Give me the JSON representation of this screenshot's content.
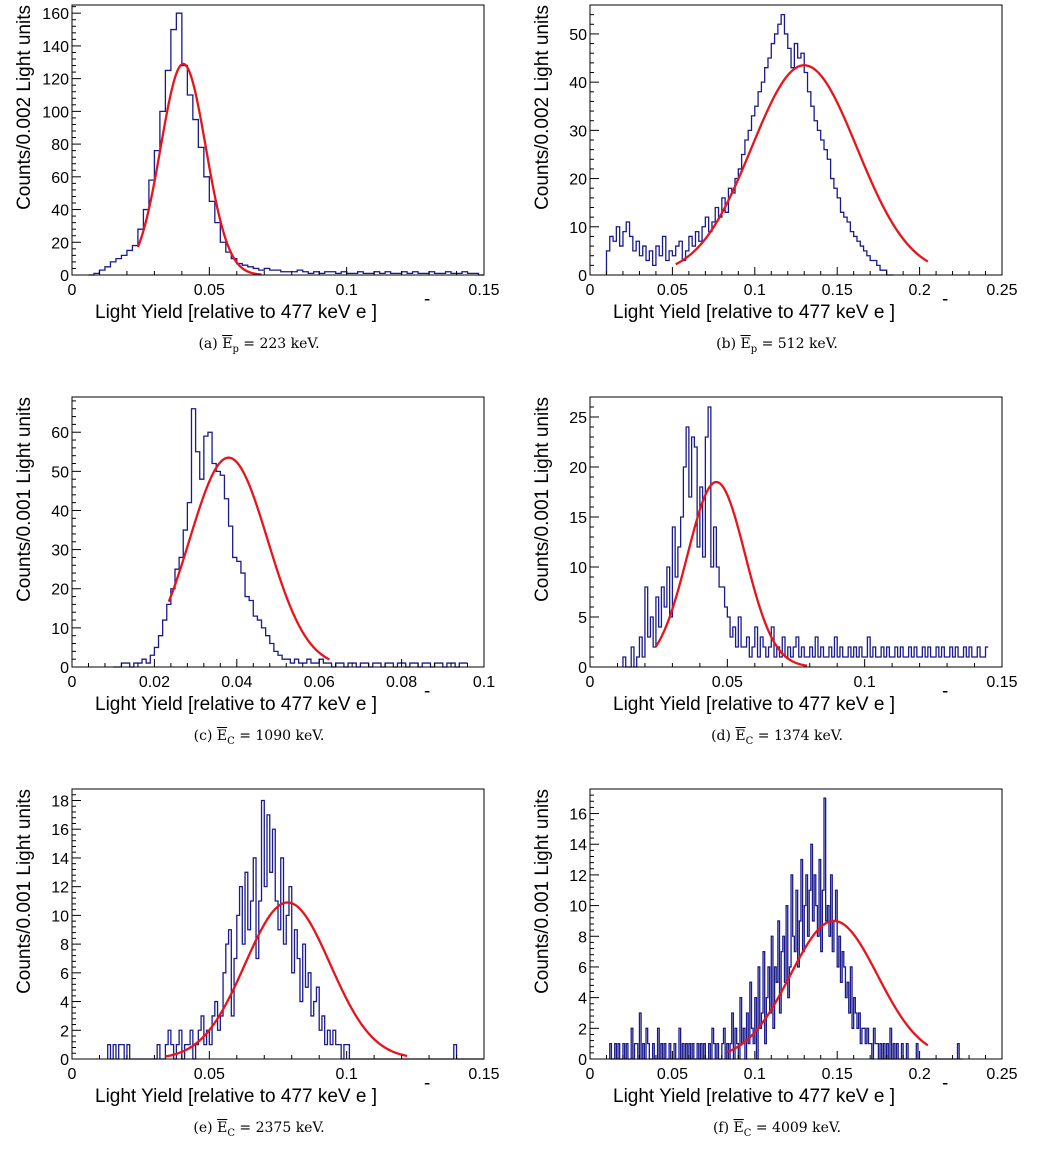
{
  "chart_data": [
    {
      "type": "histogram",
      "id": "a",
      "caption": {
        "letter": "(a)",
        "sym": "E",
        "sub": "p",
        "rest": " = 223 keV."
      },
      "ylabel": "Counts/0.002 Light units",
      "xlabel": "Light Yield [relative to 477 keV e  ]",
      "xlim": [
        0,
        0.15
      ],
      "ylim": [
        0,
        165
      ],
      "xticks": [
        0,
        0.05,
        0.1,
        0.15
      ],
      "xtick_labels": [
        "0",
        "0.05",
        "0.1",
        "0.15"
      ],
      "yticks": [
        0,
        20,
        40,
        60,
        80,
        100,
        120,
        140,
        160
      ],
      "ytick_labels": [
        "0",
        "20",
        "40",
        "60",
        "80",
        "100",
        "120",
        "140",
        "160"
      ],
      "bin_width": 0.002,
      "bin_start": 0.006,
      "counts": [
        0,
        1,
        3,
        5,
        8,
        10,
        12,
        15,
        18,
        28,
        40,
        58,
        76,
        100,
        125,
        150,
        160,
        128,
        110,
        95,
        78,
        60,
        45,
        32,
        20,
        14,
        10,
        7,
        6,
        5,
        4,
        3,
        4,
        3,
        3,
        2,
        2,
        2,
        3,
        2,
        1,
        2,
        1,
        2,
        2,
        1,
        2,
        1,
        1,
        2,
        1,
        1,
        2,
        1,
        2,
        1,
        1,
        2,
        1,
        2,
        1,
        1,
        2,
        1,
        1,
        2,
        1,
        1,
        2,
        1,
        1,
        0
      ],
      "fit": {
        "amplitude": 129,
        "mean": 0.0405,
        "sigma": 0.0082,
        "range": [
          0.024,
          0.069
        ]
      }
    },
    {
      "type": "histogram",
      "id": "b",
      "caption": {
        "letter": "(b)",
        "sym": "E",
        "sub": "p",
        "rest": " = 512 keV."
      },
      "ylabel": "Counts/0.002 Light units",
      "xlabel": "Light Yield [relative to 477 keV e  ]",
      "xlim": [
        0,
        0.25
      ],
      "ylim": [
        0,
        56
      ],
      "xticks": [
        0,
        0.05,
        0.1,
        0.15,
        0.2,
        0.25
      ],
      "xtick_labels": [
        "0",
        "0.05",
        "0.1",
        "0.15",
        "0.2",
        "0.25"
      ],
      "yticks": [
        0,
        10,
        20,
        30,
        40,
        50
      ],
      "ytick_labels": [
        "0",
        "10",
        "20",
        "30",
        "40",
        "50"
      ],
      "bin_width": 0.002,
      "bin_start": 0.01,
      "counts": [
        5,
        8,
        7,
        10,
        6,
        9,
        11,
        8,
        5,
        7,
        4,
        6,
        3,
        5,
        2,
        6,
        4,
        8,
        3,
        5,
        4,
        6,
        7,
        3,
        5,
        8,
        6,
        9,
        7,
        10,
        12,
        9,
        11,
        14,
        12,
        16,
        13,
        18,
        17,
        20,
        22,
        25,
        28,
        30,
        33,
        35,
        38,
        40,
        43,
        45,
        48,
        50,
        52,
        54,
        50,
        47,
        43,
        48,
        45,
        46,
        42,
        38,
        35,
        32,
        30,
        28,
        26,
        24,
        20,
        18,
        16,
        13,
        12,
        11,
        9,
        8,
        7,
        6,
        5,
        4,
        3,
        3,
        2,
        1,
        1,
        0,
        0
      ],
      "fit": {
        "amplitude": 43.5,
        "mean": 0.13,
        "sigma": 0.032,
        "range": [
          0.052,
          0.205
        ]
      }
    },
    {
      "type": "histogram",
      "id": "c",
      "caption": {
        "letter": "(c)",
        "sym": "E",
        "sub": "C",
        "rest": " = 1090 keV."
      },
      "ylabel": "Counts/0.001 Light units",
      "xlabel": "Light Yield [relative to 477 keV e  ]",
      "xlim": [
        0,
        0.1
      ],
      "ylim": [
        0,
        69
      ],
      "xticks": [
        0,
        0.02,
        0.04,
        0.06,
        0.08,
        0.1
      ],
      "xtick_labels": [
        "0",
        "0.02",
        "0.04",
        "0.06",
        "0.08",
        "0.1"
      ],
      "yticks": [
        0,
        10,
        20,
        30,
        40,
        50,
        60
      ],
      "ytick_labels": [
        "0",
        "10",
        "20",
        "30",
        "40",
        "50",
        "60"
      ],
      "bin_width": 0.001,
      "bin_start": 0.01,
      "counts": [
        0,
        0,
        1,
        1,
        0,
        1,
        1,
        2,
        1,
        3,
        5,
        8,
        12,
        16,
        20,
        25,
        28,
        35,
        42,
        66,
        55,
        48,
        59,
        60,
        52,
        50,
        49,
        43,
        36,
        28,
        27,
        24,
        18,
        17,
        13,
        12,
        10,
        8,
        6,
        4,
        3,
        2,
        2,
        1,
        2,
        1,
        1,
        2,
        1,
        1,
        2,
        1,
        1,
        0,
        1,
        1,
        0,
        1,
        1,
        0,
        1,
        1,
        0,
        1,
        1,
        0,
        1,
        1,
        0,
        1,
        1,
        0,
        1,
        1,
        0,
        1,
        1,
        0,
        1,
        1,
        0,
        1,
        1,
        0,
        1,
        1
      ],
      "fit": {
        "amplitude": 53.5,
        "mean": 0.038,
        "sigma": 0.0095,
        "range": [
          0.0235,
          0.0625
        ]
      }
    },
    {
      "type": "histogram",
      "id": "d",
      "caption": {
        "letter": "(d)",
        "sym": "E",
        "sub": "C",
        "rest": " = 1374 keV."
      },
      "ylabel": "Counts/0.001 Light units",
      "xlabel": "Light Yield [relative to 477 keV e  ]",
      "xlim": [
        0,
        0.15
      ],
      "ylim": [
        0,
        27
      ],
      "xticks": [
        0,
        0.05,
        0.1,
        0.15
      ],
      "xtick_labels": [
        "0",
        "0.05",
        "0.1",
        "0.15"
      ],
      "yticks": [
        0,
        5,
        10,
        15,
        20,
        25
      ],
      "ytick_labels": [
        "0",
        "5",
        "10",
        "15",
        "20",
        "25"
      ],
      "bin_width": 0.001,
      "bin_start": 0.012,
      "counts": [
        1,
        0,
        0,
        2,
        0,
        1,
        3,
        1,
        8,
        3,
        5,
        2,
        7,
        4,
        8,
        6,
        10,
        5,
        14,
        9,
        12,
        15,
        20,
        24,
        17,
        23,
        22,
        12,
        18,
        11,
        23,
        26,
        10,
        14,
        10,
        8,
        8,
        6,
        5,
        3,
        4,
        2,
        5,
        2,
        2,
        3,
        1,
        2,
        4,
        1,
        3,
        2,
        1,
        2,
        4,
        1,
        2,
        1,
        3,
        1,
        2,
        1,
        2,
        3,
        1,
        2,
        1,
        1,
        2,
        1,
        3,
        1,
        2,
        1,
        1,
        2,
        1,
        3,
        1,
        2,
        1,
        1,
        2,
        1,
        2,
        1,
        2,
        1,
        1,
        3,
        1,
        2,
        1,
        1,
        2,
        1,
        2,
        1,
        1,
        2,
        1,
        2,
        1,
        1,
        2,
        1,
        2,
        1,
        1,
        2,
        1,
        2,
        1,
        1,
        2,
        1,
        2,
        1,
        1,
        2,
        1,
        2,
        1,
        1,
        2,
        1,
        2,
        1,
        1,
        2,
        1,
        1,
        2
      ],
      "fit": {
        "amplitude": 18.5,
        "mean": 0.046,
        "sigma": 0.0105,
        "range": [
          0.024,
          0.079
        ]
      }
    },
    {
      "type": "histogram",
      "id": "e",
      "caption": {
        "letter": "(e)",
        "sym": "E",
        "sub": "C",
        "rest": " = 2375 keV."
      },
      "ylabel": "Counts/0.001 Light units",
      "xlabel": "Light Yield [relative to 477 keV e  ]",
      "xlim": [
        0,
        0.15
      ],
      "ylim": [
        0,
        18.8
      ],
      "xticks": [
        0,
        0.05,
        0.1,
        0.15
      ],
      "xtick_labels": [
        "0",
        "0.05",
        "0.1",
        "0.15"
      ],
      "yticks": [
        0,
        2,
        4,
        6,
        8,
        10,
        12,
        14,
        16,
        18
      ],
      "ytick_labels": [
        "0",
        "2",
        "4",
        "6",
        "8",
        "10",
        "12",
        "14",
        "16",
        "18"
      ],
      "bin_width": 0.001,
      "bin_start": 0.013,
      "counts": [
        1,
        0,
        1,
        0,
        1,
        1,
        0,
        1,
        0,
        0,
        0,
        0,
        0,
        0,
        0,
        0,
        0,
        0,
        1,
        0,
        0,
        1,
        2,
        1,
        0,
        1,
        2,
        0,
        1,
        1,
        2,
        0,
        1,
        2,
        3,
        1,
        2,
        1,
        3,
        4,
        2,
        3,
        6,
        8,
        9,
        3,
        7,
        10,
        12,
        8,
        13,
        9,
        11,
        14,
        7,
        11,
        18,
        12,
        17,
        13,
        16,
        11,
        9,
        14,
        8,
        10,
        12,
        6,
        9,
        7,
        4,
        8,
        5,
        6,
        3,
        4,
        5,
        2,
        3,
        1,
        2,
        1,
        2,
        1,
        1,
        0,
        1,
        1,
        0,
        0,
        0,
        0,
        0,
        0,
        0,
        0,
        0,
        0,
        0,
        0,
        0,
        0,
        0,
        0,
        0,
        0,
        0,
        0,
        0,
        0,
        0,
        0,
        0,
        0,
        0,
        0,
        0,
        0,
        0,
        0,
        0,
        0,
        0,
        0,
        0,
        0,
        1,
        0,
        0,
        0,
        0,
        0,
        0,
        0,
        0,
        0,
        0,
        0
      ],
      "fit": {
        "amplitude": 10.9,
        "mean": 0.0785,
        "sigma": 0.0155,
        "range": [
          0.034,
          0.122
        ]
      }
    },
    {
      "type": "histogram",
      "id": "f",
      "caption": {
        "letter": "(f)",
        "sym": "E",
        "sub": "C",
        "rest": " = 4009 keV."
      },
      "ylabel": "Counts/0.001 Light units",
      "xlabel": "Light Yield [relative to 477 keV e  ]",
      "xlim": [
        0,
        0.25
      ],
      "ylim": [
        0,
        17.6
      ],
      "xticks": [
        0,
        0.05,
        0.1,
        0.15,
        0.2,
        0.25
      ],
      "xtick_labels": [
        "0",
        "0.05",
        "0.1",
        "0.15",
        "0.2",
        "0.25"
      ],
      "yticks": [
        0,
        2,
        4,
        6,
        8,
        10,
        12,
        14,
        16
      ],
      "ytick_labels": [
        "0",
        "2",
        "4",
        "6",
        "8",
        "10",
        "12",
        "14",
        "16"
      ],
      "bin_width": 0.001,
      "bin_start": 0.012,
      "counts": [
        1,
        0,
        0,
        1,
        0,
        1,
        0,
        0,
        1,
        0,
        1,
        0,
        0,
        2,
        0,
        1,
        1,
        0,
        3,
        0,
        1,
        0,
        2,
        1,
        0,
        0,
        1,
        0,
        0,
        2,
        0,
        1,
        0,
        1,
        0,
        0,
        1,
        0,
        0,
        1,
        0,
        0,
        2,
        0,
        1,
        0,
        1,
        0,
        1,
        0,
        1,
        0,
        0,
        1,
        0,
        1,
        0,
        1,
        0,
        0,
        1,
        0,
        2,
        1,
        0,
        1,
        0,
        0,
        1,
        2,
        0,
        1,
        0,
        1,
        3,
        0,
        2,
        1,
        0,
        4,
        1,
        2,
        0,
        3,
        1,
        5,
        2,
        1,
        4,
        0,
        6,
        2,
        3,
        7,
        1,
        4,
        6,
        3,
        8,
        2,
        6,
        5,
        9,
        3,
        7,
        8,
        5,
        10,
        4,
        6,
        12,
        8,
        7,
        11,
        6,
        9,
        13,
        7,
        10,
        12,
        8,
        11,
        14,
        9,
        12,
        10,
        8,
        13,
        7,
        11,
        17,
        9,
        10,
        8,
        12,
        7,
        9,
        11,
        6,
        8,
        5,
        7,
        6,
        4,
        5,
        3,
        6,
        2,
        4,
        3,
        2,
        3,
        1,
        2,
        2,
        1,
        2,
        1,
        1,
        0,
        2,
        1,
        1,
        0,
        1,
        0,
        1,
        0,
        1,
        0,
        2,
        0,
        1,
        0,
        1,
        0,
        0,
        1,
        0,
        0,
        1,
        0,
        0,
        0,
        0,
        0,
        1,
        0,
        0,
        0,
        0,
        0,
        0,
        0,
        0,
        0,
        0,
        0,
        0,
        0,
        0,
        0,
        0,
        0,
        0,
        0,
        0,
        0,
        0,
        0,
        0,
        1,
        0,
        0
      ],
      "fit": {
        "amplitude": 9.0,
        "mean": 0.148,
        "sigma": 0.0265,
        "range": [
          0.083,
          0.205
        ]
      }
    }
  ]
}
